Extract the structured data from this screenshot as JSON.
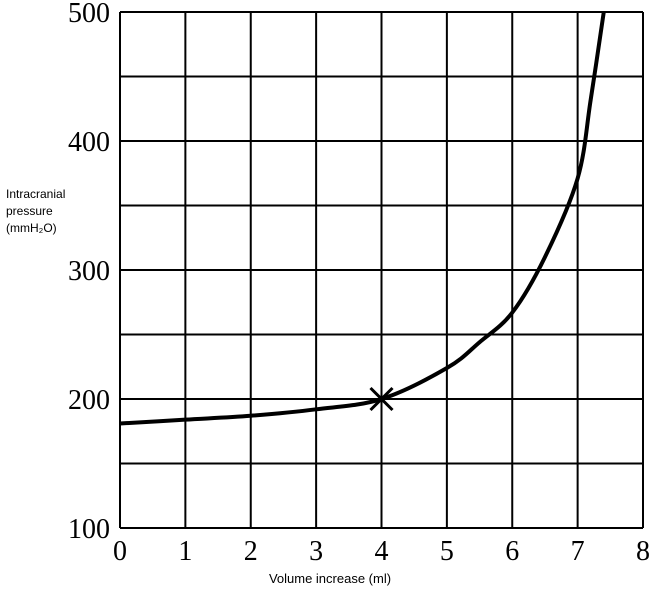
{
  "chart_data": {
    "type": "line",
    "ylabel": [
      "Intracranial",
      "pressure",
      "(mmH₂O)"
    ],
    "xlabel": "Volume increase (ml)",
    "x": [
      0,
      1,
      2,
      3,
      4,
      5,
      5.5,
      6,
      6.5,
      7,
      7.2,
      7.4
    ],
    "values": [
      181,
      184,
      187,
      192,
      200,
      224,
      244,
      267,
      310,
      371,
      432,
      500
    ],
    "color": "#000000",
    "marker": {
      "x": 4,
      "y": 200
    },
    "xlim": [
      0,
      8
    ],
    "xticks": [
      0,
      1,
      2,
      3,
      4,
      5,
      6,
      7,
      8
    ],
    "ylim": [
      100,
      500
    ],
    "yticks": [
      100,
      200,
      300,
      400,
      500
    ],
    "yminor": [
      150,
      250,
      350,
      450
    ],
    "grid": true
  }
}
